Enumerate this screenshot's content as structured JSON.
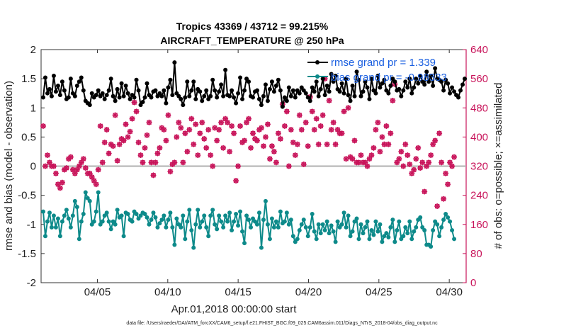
{
  "chart_data": {
    "type": "line",
    "title_line1": "Tropics 43369 / 43712 = 99.215%",
    "title_line2": "AIRCRAFT_TEMPERATURE @ 250 hPa",
    "xlabel": "Apr.01,2018 00:00:00 start",
    "ylabel_left": "rmse and bias (model - observation)",
    "ylabel_right": "# of obs: o=possible; ×=assimilated",
    "footer": "data file: /Users/raeder/DAI/ATM_forcXX/CAM6_setup/f.e21.FHIST_BGC.f09_025.CAM6assim.011/Diags_NTrS_2018-04/obs_diag_output.nc",
    "xlim": [
      1,
      31.2
    ],
    "ylim_left": [
      -2,
      2
    ],
    "ylim_right": [
      0,
      640
    ],
    "x_ticks": [
      5,
      10,
      15,
      20,
      25,
      30
    ],
    "x_tick_labels": [
      "04/05",
      "04/10",
      "04/15",
      "04/20",
      "04/25",
      "04/30"
    ],
    "y_left_ticks": [
      "-2",
      "-1.5",
      "-1",
      "-0.5",
      "0",
      "0.5",
      "1",
      "1.5",
      "2"
    ],
    "y_right_ticks": [
      "0",
      "80",
      "160",
      "240",
      "320",
      "400",
      "480",
      "560",
      "640"
    ],
    "legend": [
      {
        "name": "rmse grand pr = 1.339",
        "color": "#000000"
      },
      {
        "name": "bias grand pr = -0.98333",
        "color": "#0d8a8a"
      }
    ],
    "colors": {
      "rmse": "#000000",
      "bias": "#0d8a8a",
      "obs": "#c8145a",
      "zero": "#b0b0b0"
    },
    "rmse": [
      1.18,
      1.52,
      1.25,
      1.32,
      1.2,
      1.55,
      1.28,
      1.38,
      1.22,
      1.45,
      1.3,
      1.15,
      1.18,
      1.5,
      1.25,
      1.2,
      1.38,
      1.45,
      1.52,
      1.3,
      1.12,
      1.08,
      1.05,
      1.25,
      1.18,
      1.22,
      1.3,
      1.2,
      1.25,
      1.15,
      1.22,
      1.3,
      1.5,
      1.2,
      1.12,
      1.32,
      1.18,
      1.42,
      1.2,
      1.38,
      1.25,
      1.15,
      1.22,
      1.18,
      1.48,
      1.3,
      1.05,
      1.1,
      1.18,
      1.42,
      1.22,
      1.18,
      1.28,
      1.3,
      1.2,
      1.25,
      1.2,
      1.3,
      1.08,
      1.35,
      1.48,
      1.22,
      1.78,
      1.25,
      1.2,
      1.15,
      1.05,
      1.18,
      1.45,
      1.2,
      1.3,
      1.45,
      1.15,
      1.32,
      1.28,
      1.12,
      1.2,
      1.3,
      1.15,
      1.2,
      1.48,
      1.3,
      1.18,
      1.28,
      1.4,
      1.2,
      1.65,
      1.22,
      1.2,
      1.3,
      1.18,
      1.08,
      1.25,
      1.52,
      1.15,
      1.3,
      1.5,
      1.45,
      1.2,
      1.18,
      1.28,
      1.3,
      1.15,
      1.05,
      1.2,
      1.4,
      1.12,
      1.32,
      1.45,
      1.28,
      1.38,
      1.48,
      1.3,
      1.02,
      1.18,
      1.12,
      1.35,
      1.2,
      1.3,
      1.18,
      1.3,
      1.25,
      1.35,
      1.3,
      1.25,
      1.18,
      1.12,
      1.35,
      1.28,
      1.45,
      1.2,
      1.32,
      1.5,
      1.22,
      1.38,
      1.28,
      1.58,
      1.45,
      1.55,
      1.32,
      1.28,
      1.42,
      1.25,
      1.5,
      1.22,
      1.12,
      1.38,
      1.2,
      1.62,
      1.48,
      1.2,
      1.28,
      1.45,
      1.35,
      1.15,
      1.5,
      1.3,
      1.25,
      1.55,
      1.35,
      1.42,
      1.48,
      1.3,
      1.25,
      1.38,
      1.5,
      1.45,
      1.3,
      1.32,
      1.2,
      1.3,
      1.45,
      1.35,
      1.5,
      1.25,
      1.35,
      1.5,
      1.42,
      1.55,
      1.45,
      1.4,
      1.62,
      1.45,
      1.55,
      1.38,
      1.68,
      1.5,
      1.48,
      1.45,
      1.3,
      1.48,
      1.42,
      1.25,
      1.35,
      1.28,
      1.22,
      1.18,
      1.3,
      1.4,
      1.5
    ],
    "bias": [
      -0.78,
      -1.2,
      -0.95,
      -0.8,
      -1.05,
      -0.85,
      -1.05,
      -0.9,
      -1.2,
      -0.95,
      -0.85,
      -0.75,
      -0.9,
      -1.05,
      -0.85,
      -0.6,
      -0.7,
      -1.25,
      -0.95,
      -0.82,
      -0.45,
      -0.55,
      -0.6,
      -1.0,
      -0.95,
      -0.78,
      -0.45,
      -1.0,
      -0.95,
      -0.85,
      -0.8,
      -0.95,
      -1.08,
      -0.95,
      -1.0,
      -0.75,
      -0.88,
      -0.85,
      -1.2,
      -0.8,
      -0.82,
      -0.92,
      -0.95,
      -0.78,
      -0.82,
      -0.9,
      -0.85,
      -0.8,
      -0.82,
      -0.88,
      -1.0,
      -0.92,
      -0.8,
      -0.88,
      -1.05,
      -0.98,
      -0.92,
      -0.85,
      -1.05,
      -0.92,
      -0.8,
      -1.05,
      -1.35,
      -0.9,
      -1.0,
      -1.05,
      -0.85,
      -1.25,
      -0.95,
      -0.75,
      -1.1,
      -1.4,
      -1.0,
      -0.75,
      -1.05,
      -0.95,
      -0.85,
      -1.05,
      -1.2,
      -0.85,
      -0.75,
      -1.0,
      -1.08,
      -0.85,
      -0.95,
      -1.05,
      -0.85,
      -0.95,
      -0.8,
      -1.1,
      -0.95,
      -0.82,
      -1.02,
      -0.78,
      -1.12,
      -1.32,
      -0.85,
      -0.92,
      -1.05,
      -0.9,
      -0.95,
      -1.0,
      -0.8,
      -1.4,
      -0.92,
      -0.6,
      -1.0,
      -1.25,
      -0.9,
      -1.05,
      -0.95,
      -1.05,
      -0.78,
      -0.98,
      -0.95,
      -0.8,
      -1.0,
      -0.92,
      -1.2,
      -1.3,
      -1.25,
      -1.1,
      -1.0,
      -0.92,
      -1.05,
      -1.2,
      -1.05,
      -0.82,
      -1.12,
      -1.25,
      -1.0,
      -1.15,
      -1.0,
      -1.1,
      -0.95,
      -1.15,
      -1.02,
      -1.12,
      -1.3,
      -0.95,
      -1.05,
      -1.0,
      -0.8,
      -1.05,
      -0.85,
      -1.2,
      -1.12,
      -0.95,
      -0.9,
      -1.25,
      -1.0,
      -1.15,
      -1.05,
      -0.95,
      -1.25,
      -1.1,
      -1.18,
      -0.95,
      -1.12,
      -1.0,
      -1.3,
      -1.2,
      -1.15,
      -1.22,
      -1.05,
      -0.92,
      -1.3,
      -1.1,
      -0.95,
      -1.25,
      -1.2,
      -1.05,
      -1.15,
      -0.95,
      -1.25,
      -1.12,
      -1.05,
      -0.92,
      -0.88,
      -1.05,
      -1.1,
      -1.35,
      -1.35,
      -1.38,
      -1.1,
      -0.95,
      -1.0,
      -1.2,
      -1.05,
      -0.92,
      -0.82,
      -0.88,
      -0.95,
      -1.1,
      -1.25
    ],
    "obs_possible": [
      430,
      320,
      350,
      330,
      320,
      320,
      300,
      270,
      260,
      275,
      310,
      315,
      340,
      345,
      310,
      300,
      310,
      320,
      330,
      340,
      315,
      300,
      300,
      290,
      280,
      270,
      310,
      430,
      330,
      385,
      420,
      355,
      380,
      375,
      460,
      335,
      380,
      395,
      390,
      435,
      400,
      415,
      450,
      495,
      470,
      385,
      350,
      330,
      370,
      405,
      440,
      330,
      295,
      330,
      355,
      370,
      425,
      420,
      390,
      460,
      305,
      325,
      330,
      400,
      440,
      425,
      330,
      410,
      360,
      420,
      450,
      380,
      435,
      350,
      410,
      440,
      395,
      370,
      420,
      350,
      320,
      425,
      390,
      420,
      440,
      370,
      450,
      440,
      360,
      430,
      410,
      280,
      320,
      430,
      385,
      390,
      440,
      450,
      370,
      410,
      395,
      390,
      420,
      425,
      375,
      400,
      435,
      340,
      375,
      360,
      330,
      410,
      395,
      490,
      430,
      470,
      320,
      420,
      385,
      350,
      380,
      460,
      420,
      325,
      440,
      375,
      510,
      470,
      420,
      450,
      380,
      430,
      460,
      560,
      380,
      500,
      420,
      440,
      380,
      420,
      410,
      410,
      470,
      340,
      480,
      345,
      340,
      390,
      330,
      330,
      350,
      330,
      330,
      320,
      340,
      350,
      370,
      420,
      440,
      360,
      400,
      380,
      430,
      380,
      410,
      500,
      545,
      330,
      340,
      360,
      320,
      380,
      350,
      325,
      300,
      310,
      340,
      370,
      315,
      330,
      250,
      320,
      330,
      350,
      380,
      390,
      210,
      410,
      330,
      230,
      300,
      270,
      330,
      320,
      345
    ],
    "obs_assimilated": [
      430,
      320,
      350,
      330,
      320,
      320,
      300,
      270,
      260,
      275,
      310,
      315,
      340,
      345,
      310,
      300,
      310,
      320,
      330,
      340,
      315,
      300,
      300,
      290,
      280,
      270,
      310,
      430,
      330,
      385,
      420,
      355,
      380,
      375,
      460,
      335,
      380,
      395,
      390,
      435,
      400,
      415,
      450,
      495,
      470,
      385,
      350,
      330,
      370,
      405,
      440,
      330,
      295,
      330,
      355,
      370,
      425,
      420,
      390,
      460,
      305,
      325,
      330,
      400,
      440,
      425,
      330,
      410,
      360,
      420,
      450,
      380,
      435,
      350,
      410,
      440,
      395,
      370,
      420,
      350,
      320,
      425,
      390,
      420,
      440,
      370,
      450,
      440,
      360,
      430,
      410,
      280,
      320,
      430,
      385,
      390,
      440,
      450,
      370,
      410,
      395,
      390,
      420,
      425,
      375,
      400,
      435,
      340,
      375,
      360,
      330,
      410,
      395,
      490,
      430,
      470,
      320,
      420,
      385,
      350,
      380,
      460,
      420,
      325,
      440,
      375,
      510,
      470,
      420,
      450,
      380,
      430,
      460,
      560,
      380,
      500,
      420,
      440,
      380,
      420,
      410,
      410,
      470,
      340,
      480,
      345,
      340,
      390,
      330,
      330,
      350,
      330,
      330,
      320,
      340,
      350,
      370,
      420,
      440,
      360,
      400,
      380,
      430,
      380,
      410,
      500,
      545,
      330,
      340,
      360,
      320,
      380,
      350,
      325,
      300,
      310,
      340,
      370,
      315,
      330,
      250,
      320,
      330,
      350,
      380,
      390,
      210,
      410,
      330,
      230,
      300,
      270,
      330,
      320,
      345
    ]
  }
}
